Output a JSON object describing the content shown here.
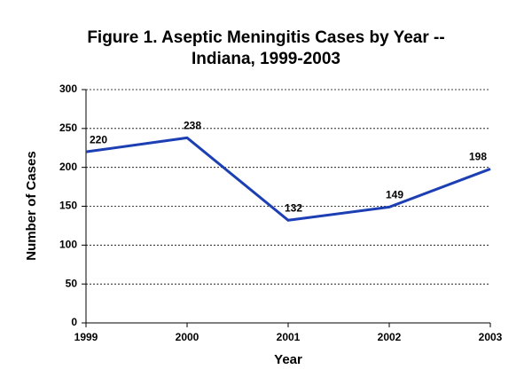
{
  "chart_data": {
    "type": "line",
    "title_lines": [
      "Figure 1.  Aseptic Meningitis Cases by Year --",
      "Indiana, 1999-2003"
    ],
    "x_label": "Year",
    "y_label": "Number of Cases",
    "x": [
      1999,
      2000,
      2001,
      2002,
      2003
    ],
    "series": [
      {
        "name": "Cases",
        "color": "#1c3fb4",
        "values": [
          220,
          238,
          132,
          149,
          198
        ]
      }
    ],
    "xlim": [
      1999,
      2003
    ],
    "xticks": [
      1999,
      2000,
      2001,
      2002,
      2003
    ],
    "ylim": [
      0,
      300
    ],
    "yticks": [
      0,
      50,
      100,
      150,
      200,
      250,
      300
    ],
    "grid": true
  }
}
